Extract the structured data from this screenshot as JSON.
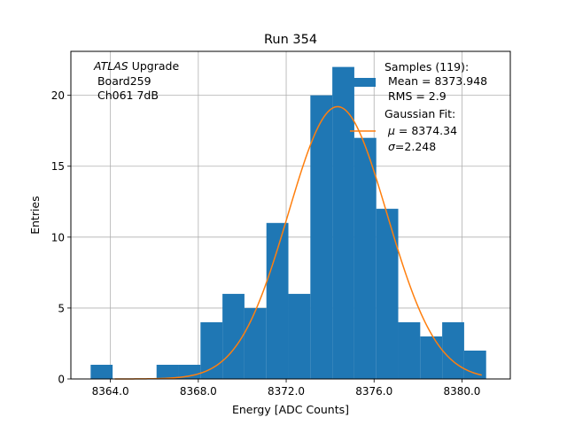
{
  "chart_data": {
    "type": "bar",
    "title": "Run 354",
    "xlabel": "Energy [ADC Counts]",
    "ylabel": "Entries",
    "xlim": [
      8362.2,
      8382.2
    ],
    "ylim": [
      0,
      23.1
    ],
    "grid": true,
    "legend_position": "top-right",
    "x_ticks": [
      {
        "value": 8364.0,
        "label": "8364.0"
      },
      {
        "value": 8368.0,
        "label": "8368.0"
      },
      {
        "value": 8372.0,
        "label": "8372.0"
      },
      {
        "value": 8376.0,
        "label": "8376.0"
      },
      {
        "value": 8380.0,
        "label": "8380.0"
      }
    ],
    "y_ticks": [
      {
        "value": 0,
        "label": "0"
      },
      {
        "value": 5,
        "label": "5"
      },
      {
        "value": 10,
        "label": "10"
      },
      {
        "value": 15,
        "label": "15"
      },
      {
        "value": 20,
        "label": "20"
      }
    ],
    "annotation": {
      "italic_part": "ATLAS",
      "line1_rest": " Upgrade",
      "line2": " Board259",
      "line3": " Ch061 7dB"
    },
    "histogram": {
      "color": "#1f77b4",
      "bin_edges": [
        8363.1,
        8364.1,
        8365.1,
        8366.1,
        8367.1,
        8368.1,
        8369.1,
        8370.1,
        8371.1,
        8372.1,
        8373.1,
        8374.1,
        8375.1,
        8376.1,
        8377.1,
        8378.1,
        8379.1,
        8380.1,
        8381.1
      ],
      "counts": [
        1,
        0,
        0,
        1,
        1,
        4,
        6,
        5,
        11,
        6,
        20,
        22,
        17,
        12,
        4,
        3,
        4,
        2
      ]
    },
    "fit": {
      "color": "#ff7f0e",
      "mu": 8374.34,
      "sigma": 2.248,
      "amplitude": 19.2,
      "x_range": [
        8364.2,
        8380.9
      ]
    },
    "legend": {
      "samples_line1": "Samples (119):",
      "samples_line2": " Mean = 8373.948",
      "samples_line3": " RMS = 2.9",
      "fit_line1": "Gaussian Fit:",
      "fit_line2_rest": " = 8374.34",
      "fit_line3_rest": "=2.248",
      "mu_symbol": "μ",
      "sigma_symbol": "σ"
    }
  }
}
